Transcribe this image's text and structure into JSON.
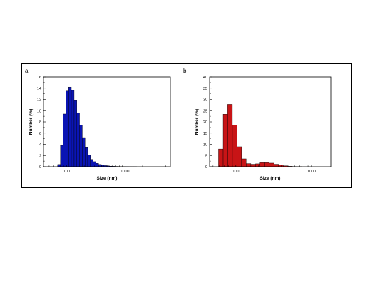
{
  "chart_data": [
    {
      "panel": "a.",
      "type": "bar",
      "xlabel": "Size (nm)",
      "ylabel": "Number (%)",
      "xscale": "log",
      "xlim": [
        40,
        6000
      ],
      "ylim": [
        0,
        16
      ],
      "yticks": [
        0,
        2,
        4,
        6,
        8,
        10,
        12,
        14,
        16
      ],
      "xticks": [
        100,
        1000
      ],
      "xtick_labels": [
        "100",
        "1000"
      ],
      "color": "#0a14b4",
      "bin_edges": [
        70,
        78,
        87,
        97,
        108,
        120,
        134,
        149,
        166,
        185,
        206,
        229,
        255,
        284,
        316,
        352,
        392,
        436,
        486,
        541,
        602,
        670,
        746,
        831,
        925,
        1030,
        1147,
        1277,
        1422,
        1583
      ],
      "values": [
        0.4,
        3.8,
        9.4,
        13.5,
        14.2,
        13.6,
        11.8,
        9.6,
        7.4,
        5.2,
        3.4,
        2.1,
        1.3,
        0.9,
        0.6,
        0.4,
        0.3,
        0.2,
        0.15,
        0.1,
        0.08,
        0.06,
        0.05,
        0.04,
        0.03,
        0.02,
        0.01,
        0.01,
        0.01
      ]
    },
    {
      "panel": "b.",
      "type": "bar",
      "xlabel": "Size (nm)",
      "ylabel": "Number (%)",
      "xscale": "log",
      "xlim": [
        45,
        1800
      ],
      "ylim": [
        0,
        40
      ],
      "yticks": [
        0,
        5,
        10,
        15,
        20,
        25,
        30,
        35,
        40
      ],
      "xticks": [
        100,
        1000
      ],
      "xtick_labels": [
        "100",
        "1000"
      ],
      "color": "#c81416",
      "bin_edges": [
        59,
        68,
        78,
        90,
        104,
        119,
        137,
        158,
        182,
        209,
        241,
        277,
        319,
        367,
        423,
        487,
        560,
        645,
        742
      ],
      "values": [
        7.9,
        23.4,
        27.8,
        18.5,
        8.9,
        3.5,
        1.4,
        1.1,
        1.3,
        1.8,
        1.8,
        1.6,
        1.1,
        0.7,
        0.4,
        0.2,
        0.1,
        0.05
      ]
    }
  ]
}
